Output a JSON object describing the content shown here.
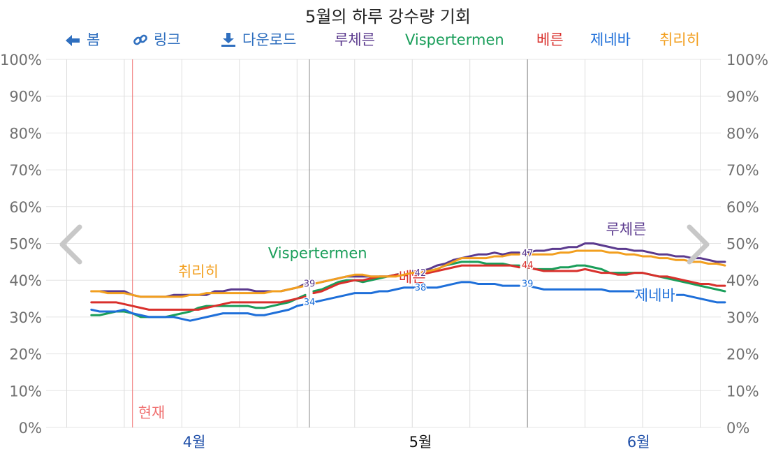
{
  "title": "5월의 하루 강수량 기회",
  "toolbar": {
    "back_label": "봄",
    "link_label": "링크",
    "download_label": "다운로드"
  },
  "now_label": "현재",
  "chart_data": {
    "type": "line",
    "title": "5월의 하루 강수량 기회",
    "x_unit": "day",
    "x_range": [
      -5.5,
      76.5
    ],
    "ylim": [
      0,
      100
    ],
    "y_ticks": [
      0,
      10,
      20,
      30,
      40,
      50,
      60,
      70,
      80,
      90,
      100
    ],
    "y_tick_suffix": "%",
    "months": [
      {
        "label": "4월",
        "x": 12.5,
        "current": false,
        "color": "#1f4fa8"
      },
      {
        "label": "5월",
        "x": 40,
        "current": true,
        "color": "#111111"
      },
      {
        "label": "6월",
        "x": 66.5,
        "color": "#1f4fa8",
        "current": false
      }
    ],
    "now_x": 5,
    "grid": true,
    "series": [
      {
        "name": "루체른",
        "color": "#5b3a8e",
        "values": [
          37,
          37,
          37,
          37,
          37,
          36,
          35.5,
          35.5,
          35.5,
          35.5,
          36,
          36,
          36,
          36,
          36,
          37,
          37,
          37.5,
          37.5,
          37.5,
          37,
          37,
          37,
          37,
          37.5,
          38,
          39,
          39,
          39.5,
          40,
          40.5,
          41,
          41,
          41,
          41,
          41,
          41,
          41.5,
          42,
          42.5,
          42.5,
          43,
          44,
          44.5,
          45.5,
          46,
          46.5,
          47,
          47,
          47.5,
          47,
          47.5,
          47.5,
          47.5,
          48,
          48,
          48.5,
          48.5,
          49,
          49,
          50,
          50,
          49.5,
          49,
          48.5,
          48.5,
          48,
          48,
          47.5,
          47,
          47,
          46.5,
          46.5,
          46,
          46,
          45.5,
          45,
          45
        ],
        "start_label": "39",
        "mid_label": "42",
        "end_label": "47",
        "label_pos": {
          "x": 65,
          "y": 52.5
        }
      },
      {
        "name": "Vispertermen",
        "color": "#1a9e5a",
        "values": [
          30.5,
          30.5,
          31,
          31.5,
          31.5,
          31,
          30,
          30,
          30,
          30,
          30.5,
          31,
          31.5,
          32.5,
          33,
          33,
          33,
          33,
          33,
          33,
          32.5,
          32.5,
          33,
          33.5,
          34,
          35,
          36,
          37,
          37.5,
          38.5,
          39.5,
          40,
          40,
          39.5,
          40,
          40.5,
          41,
          41.5,
          41.5,
          42,
          42,
          42.5,
          43,
          44,
          44.5,
          45,
          45,
          45,
          44.5,
          44.5,
          44.5,
          44,
          44,
          43.5,
          43,
          43,
          43,
          43.5,
          43.5,
          44,
          44,
          43.5,
          43,
          42,
          42,
          42,
          42,
          42,
          41.5,
          41,
          40.5,
          40,
          39.5,
          39,
          38.5,
          38,
          37.5,
          37
        ],
        "label_pos": {
          "x": 27.5,
          "y": 46
        }
      },
      {
        "name": "베른",
        "color": "#d9302c",
        "values": [
          34,
          34,
          34,
          34,
          33.5,
          33,
          32.5,
          32,
          32,
          32,
          32,
          32,
          32,
          32,
          32.5,
          33,
          33.5,
          34,
          34,
          34,
          34,
          34,
          34,
          34,
          34.5,
          35,
          35.5,
          36.5,
          37,
          38,
          39,
          39.5,
          40,
          40,
          40.5,
          41,
          41,
          41.5,
          41.5,
          41.5,
          41.5,
          42,
          42.5,
          43,
          43.5,
          44,
          44,
          44,
          44,
          44,
          44,
          44,
          43.5,
          43.5,
          43,
          42.5,
          42.5,
          42.5,
          42.5,
          42.5,
          43,
          42.5,
          42,
          42,
          41.5,
          41.5,
          42,
          42,
          41.5,
          41,
          41,
          40.5,
          40,
          39.5,
          39,
          39,
          38.5,
          38.5
        ],
        "end_label": "44",
        "label_pos": {
          "x": 39,
          "y": 39.5
        }
      },
      {
        "name": "제네바",
        "color": "#1e6fd9",
        "values": [
          32,
          31.5,
          31.5,
          31.5,
          32,
          31,
          30.5,
          30,
          30,
          30,
          30,
          29.5,
          29,
          29.5,
          30,
          30.5,
          31,
          31,
          31,
          31,
          30.5,
          30.5,
          31,
          31.5,
          32,
          33,
          33.5,
          34,
          34.5,
          35,
          35.5,
          36,
          36.5,
          36.5,
          36.5,
          37,
          37,
          37.5,
          38,
          38,
          38,
          38,
          38,
          38.5,
          39,
          39.5,
          39.5,
          39,
          39,
          39,
          38.5,
          38.5,
          38.5,
          38.5,
          38,
          37.5,
          37.5,
          37.5,
          37.5,
          37.5,
          37.5,
          37.5,
          37.5,
          37,
          37,
          37,
          37,
          37,
          36.5,
          36.5,
          36.5,
          36,
          36,
          35.5,
          35,
          34.5,
          34,
          34
        ],
        "start_label": "34",
        "mid_label": "38",
        "end_label": "39",
        "label_pos": {
          "x": 68.5,
          "y": 34.5
        }
      },
      {
        "name": "취리히",
        "color": "#f29f1f",
        "values": [
          37,
          37,
          36.5,
          36.5,
          36.5,
          36,
          35.5,
          35.5,
          35.5,
          35.5,
          35.5,
          35.5,
          36,
          36,
          36.5,
          36.5,
          36.5,
          36.5,
          36.5,
          36.5,
          36.5,
          36.5,
          37,
          37,
          37.5,
          38,
          38.5,
          39,
          39.5,
          40,
          40.5,
          41,
          41.5,
          41.5,
          41,
          41,
          41,
          41,
          41.5,
          42,
          42,
          42.5,
          43,
          44,
          45,
          46,
          46,
          46,
          46,
          46.5,
          46.5,
          47,
          47,
          47,
          47,
          47,
          47,
          47.5,
          47.5,
          48,
          48,
          48,
          48,
          47.5,
          47.5,
          47,
          47,
          46.5,
          46.5,
          46,
          46,
          45.5,
          45.5,
          45,
          45,
          44.5,
          44.5,
          44
        ],
        "label_pos": {
          "x": 13,
          "y": 41
        }
      }
    ]
  }
}
